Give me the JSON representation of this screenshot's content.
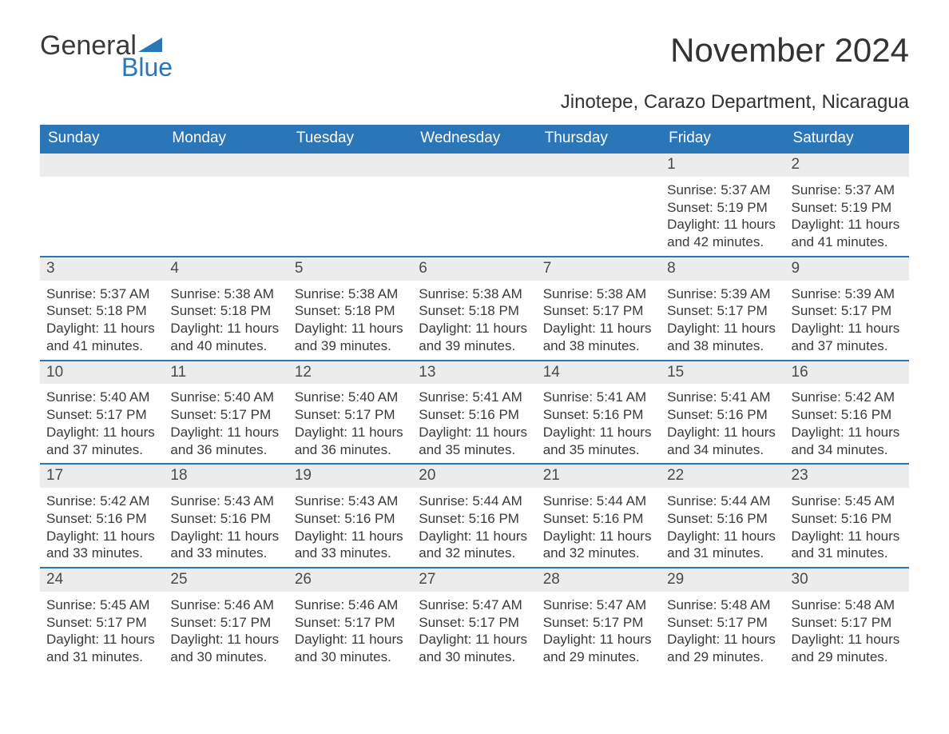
{
  "brand": {
    "part1": "General",
    "part2": "Blue",
    "accent_color": "#2a76b8"
  },
  "title": "November 2024",
  "location": "Jinotepe, Carazo Department, Nicaragua",
  "colors": {
    "header_bg": "#2a76b8",
    "header_text": "#ffffff",
    "daynum_bg": "#ececec",
    "row_border": "#2a76b8",
    "body_text": "#3a3a3a",
    "page_bg": "#ffffff"
  },
  "typography": {
    "title_fontsize": 42,
    "location_fontsize": 24,
    "header_fontsize": 19,
    "daynum_fontsize": 19,
    "body_fontsize": 17
  },
  "layout": {
    "columns": 7,
    "rows": 5,
    "first_weekday_index": 5
  },
  "weekdays": [
    "Sunday",
    "Monday",
    "Tuesday",
    "Wednesday",
    "Thursday",
    "Friday",
    "Saturday"
  ],
  "labels": {
    "sunrise": "Sunrise",
    "sunset": "Sunset",
    "daylight": "Daylight"
  },
  "days": [
    {
      "n": 1,
      "sunrise": "5:37 AM",
      "sunset": "5:19 PM",
      "daylight": "11 hours and 42 minutes."
    },
    {
      "n": 2,
      "sunrise": "5:37 AM",
      "sunset": "5:19 PM",
      "daylight": "11 hours and 41 minutes."
    },
    {
      "n": 3,
      "sunrise": "5:37 AM",
      "sunset": "5:18 PM",
      "daylight": "11 hours and 41 minutes."
    },
    {
      "n": 4,
      "sunrise": "5:38 AM",
      "sunset": "5:18 PM",
      "daylight": "11 hours and 40 minutes."
    },
    {
      "n": 5,
      "sunrise": "5:38 AM",
      "sunset": "5:18 PM",
      "daylight": "11 hours and 39 minutes."
    },
    {
      "n": 6,
      "sunrise": "5:38 AM",
      "sunset": "5:18 PM",
      "daylight": "11 hours and 39 minutes."
    },
    {
      "n": 7,
      "sunrise": "5:38 AM",
      "sunset": "5:17 PM",
      "daylight": "11 hours and 38 minutes."
    },
    {
      "n": 8,
      "sunrise": "5:39 AM",
      "sunset": "5:17 PM",
      "daylight": "11 hours and 38 minutes."
    },
    {
      "n": 9,
      "sunrise": "5:39 AM",
      "sunset": "5:17 PM",
      "daylight": "11 hours and 37 minutes."
    },
    {
      "n": 10,
      "sunrise": "5:40 AM",
      "sunset": "5:17 PM",
      "daylight": "11 hours and 37 minutes."
    },
    {
      "n": 11,
      "sunrise": "5:40 AM",
      "sunset": "5:17 PM",
      "daylight": "11 hours and 36 minutes."
    },
    {
      "n": 12,
      "sunrise": "5:40 AM",
      "sunset": "5:17 PM",
      "daylight": "11 hours and 36 minutes."
    },
    {
      "n": 13,
      "sunrise": "5:41 AM",
      "sunset": "5:16 PM",
      "daylight": "11 hours and 35 minutes."
    },
    {
      "n": 14,
      "sunrise": "5:41 AM",
      "sunset": "5:16 PM",
      "daylight": "11 hours and 35 minutes."
    },
    {
      "n": 15,
      "sunrise": "5:41 AM",
      "sunset": "5:16 PM",
      "daylight": "11 hours and 34 minutes."
    },
    {
      "n": 16,
      "sunrise": "5:42 AM",
      "sunset": "5:16 PM",
      "daylight": "11 hours and 34 minutes."
    },
    {
      "n": 17,
      "sunrise": "5:42 AM",
      "sunset": "5:16 PM",
      "daylight": "11 hours and 33 minutes."
    },
    {
      "n": 18,
      "sunrise": "5:43 AM",
      "sunset": "5:16 PM",
      "daylight": "11 hours and 33 minutes."
    },
    {
      "n": 19,
      "sunrise": "5:43 AM",
      "sunset": "5:16 PM",
      "daylight": "11 hours and 33 minutes."
    },
    {
      "n": 20,
      "sunrise": "5:44 AM",
      "sunset": "5:16 PM",
      "daylight": "11 hours and 32 minutes."
    },
    {
      "n": 21,
      "sunrise": "5:44 AM",
      "sunset": "5:16 PM",
      "daylight": "11 hours and 32 minutes."
    },
    {
      "n": 22,
      "sunrise": "5:44 AM",
      "sunset": "5:16 PM",
      "daylight": "11 hours and 31 minutes."
    },
    {
      "n": 23,
      "sunrise": "5:45 AM",
      "sunset": "5:16 PM",
      "daylight": "11 hours and 31 minutes."
    },
    {
      "n": 24,
      "sunrise": "5:45 AM",
      "sunset": "5:17 PM",
      "daylight": "11 hours and 31 minutes."
    },
    {
      "n": 25,
      "sunrise": "5:46 AM",
      "sunset": "5:17 PM",
      "daylight": "11 hours and 30 minutes."
    },
    {
      "n": 26,
      "sunrise": "5:46 AM",
      "sunset": "5:17 PM",
      "daylight": "11 hours and 30 minutes."
    },
    {
      "n": 27,
      "sunrise": "5:47 AM",
      "sunset": "5:17 PM",
      "daylight": "11 hours and 30 minutes."
    },
    {
      "n": 28,
      "sunrise": "5:47 AM",
      "sunset": "5:17 PM",
      "daylight": "11 hours and 29 minutes."
    },
    {
      "n": 29,
      "sunrise": "5:48 AM",
      "sunset": "5:17 PM",
      "daylight": "11 hours and 29 minutes."
    },
    {
      "n": 30,
      "sunrise": "5:48 AM",
      "sunset": "5:17 PM",
      "daylight": "11 hours and 29 minutes."
    }
  ]
}
